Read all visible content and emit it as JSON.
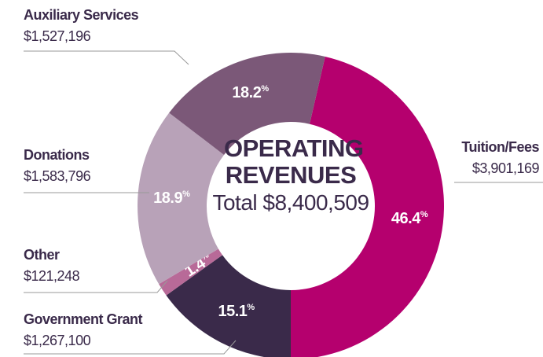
{
  "chart_data": {
    "type": "pie",
    "donut": true,
    "title": "OPERATING REVENUES",
    "subtitle": "Total $8,400,509",
    "categories": [
      "Tuition/Fees",
      "Government Grant",
      "Other",
      "Donations",
      "Auxiliary Services"
    ],
    "amount_labels": [
      "$3,901,169",
      "$1,267,100",
      "$121,248",
      "$1,583,796",
      "$1,527,196"
    ],
    "values": [
      46.4,
      15.1,
      1.4,
      18.9,
      18.2
    ],
    "unit": "%",
    "colors": [
      "#b5006e",
      "#3a2a4a",
      "#b86a98",
      "#b8a2b8",
      "#7b5878"
    ]
  }
}
